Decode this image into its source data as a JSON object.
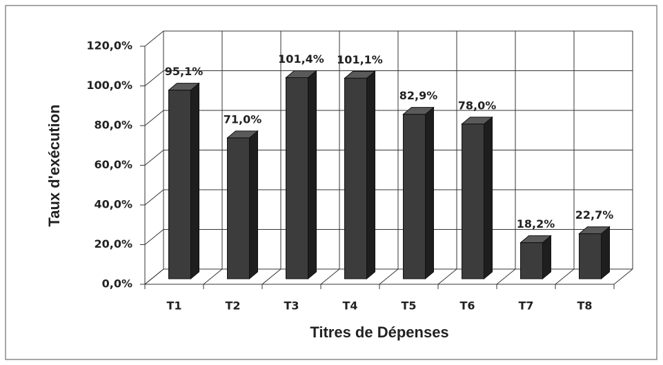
{
  "chart_data": {
    "type": "bar",
    "x_label": "Titres de Dépenses",
    "y_label": "Taux d'exécution",
    "categories": [
      "T1",
      "T2",
      "T3",
      "T4",
      "T5",
      "T6",
      "T7",
      "T8"
    ],
    "values": [
      95.1,
      71.0,
      101.4,
      101.1,
      82.9,
      78.0,
      18.2,
      22.7
    ],
    "value_labels": [
      "95,1%",
      "71,0%",
      "101,4%",
      "101,1%",
      "82,9%",
      "78,0%",
      "18,2%",
      "22,7%"
    ],
    "color": "#3c3c3c",
    "ylim": [
      0,
      120
    ],
    "yticks": [
      {
        "value": 0,
        "label": "0,0%"
      },
      {
        "value": 20,
        "label": "20,0%"
      },
      {
        "value": 40,
        "label": "40,0%"
      },
      {
        "value": 60,
        "label": "60,0%"
      },
      {
        "value": 80,
        "label": "80,0%"
      },
      {
        "value": 100,
        "label": "100,0%"
      },
      {
        "value": 120,
        "label": "120,0%"
      }
    ],
    "grid": true
  }
}
